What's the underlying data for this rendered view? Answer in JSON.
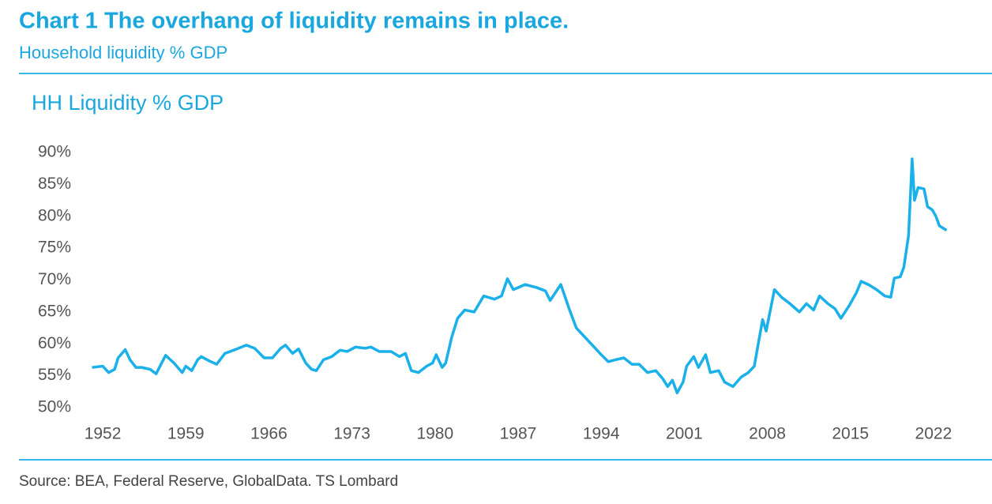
{
  "chart_data": {
    "type": "line",
    "title": "Chart 1 The overhang of liquidity remains in place.",
    "subtitle": "Household liquidity % GDP",
    "plot_title": "HH Liquidity % GDP",
    "source": "Source: BEA, Federal Reserve, GlobalData. TS Lombard",
    "color": "#1ab0ea",
    "x": [
      1951.1,
      1952,
      1952.5,
      1953,
      1953.3,
      1953.9,
      1954.3,
      1954.8,
      1955.3,
      1956,
      1956.5,
      1957.3,
      1958,
      1958.7,
      1959,
      1959.5,
      1960,
      1960.3,
      1961,
      1961.6,
      1962.3,
      1963.3,
      1964.1,
      1964.8,
      1965.6,
      1966.3,
      1967,
      1967.4,
      1968,
      1968.5,
      1969.1,
      1969.6,
      1970,
      1970.6,
      1971.3,
      1972,
      1972.6,
      1973.3,
      1974.1,
      1974.6,
      1975.3,
      1976.3,
      1977,
      1977.5,
      1978,
      1978.6,
      1979.3,
      1979.8,
      1980.1,
      1980.6,
      1980.9,
      1981.4,
      1981.9,
      1982.5,
      1983.3,
      1984.1,
      1985,
      1985.6,
      1986.1,
      1986.6,
      1987.6,
      1988.6,
      1989.3,
      1989.7,
      1990.6,
      1991.3,
      1991.9,
      1992.9,
      1993.9,
      1994.6,
      1995.2,
      1995.9,
      1996.6,
      1997.2,
      1997.9,
      1998.6,
      1999.2,
      1999.6,
      2000,
      2000.4,
      2000.9,
      2001.2,
      2001.8,
      2002.2,
      2002.8,
      2003.2,
      2003.9,
      2004.4,
      2005.1,
      2005.8,
      2006.4,
      2006.9,
      2007.6,
      2007.9,
      2008.6,
      2009.2,
      2009.9,
      2010.7,
      2011.3,
      2011.9,
      2012.4,
      2013.1,
      2013.7,
      2014.2,
      2014.9,
      2015.5,
      2015.9,
      2016.5,
      2017.2,
      2017.9,
      2018.4,
      2018.7,
      2019.2,
      2019.5,
      2019.9,
      2020.2,
      2020.4,
      2020.7,
      2021.2,
      2021.5,
      2021.9,
      2022.2,
      2022.5,
      2023.1
    ],
    "values": [
      56.3,
      56.5,
      55.5,
      56,
      57.8,
      59.1,
      57.5,
      56.3,
      56.3,
      56,
      55.3,
      58.2,
      57,
      55.5,
      56.5,
      55.8,
      57.5,
      58,
      57.3,
      56.8,
      58.5,
      59.2,
      59.8,
      59.3,
      57.8,
      57.8,
      59.3,
      59.8,
      58.5,
      59.2,
      57,
      56,
      55.8,
      57.5,
      58,
      59,
      58.8,
      59.5,
      59.3,
      59.5,
      58.8,
      58.8,
      58,
      58.5,
      55.8,
      55.5,
      56.5,
      57,
      58.3,
      56.3,
      57,
      61,
      64,
      65.3,
      65,
      67.5,
      67,
      67.5,
      70.2,
      68.5,
      69.3,
      68.8,
      68.3,
      66.8,
      69.3,
      65.5,
      62.5,
      60.5,
      58.5,
      57.2,
      57.5,
      57.8,
      56.8,
      56.8,
      55.5,
      55.8,
      54.5,
      53.3,
      54.3,
      52.3,
      54,
      56.5,
      58,
      56.3,
      58.3,
      55.5,
      55.8,
      54,
      53.3,
      54.8,
      55.5,
      56.5,
      63.8,
      62,
      68.5,
      67.3,
      66.3,
      65,
      66.3,
      65.3,
      67.5,
      66.3,
      65.5,
      64,
      66,
      68,
      69.8,
      69.3,
      68.5,
      67.5,
      67.3,
      70.3,
      70.5,
      72,
      77,
      89,
      82.5,
      84.5,
      84.3,
      81.5,
      81,
      80,
      78.5,
      77.8
    ],
    "xlim": [
      1950,
      2025
    ],
    "xticks": [
      1952,
      1959,
      1966,
      1973,
      1980,
      1987,
      1994,
      2001,
      2008,
      2015,
      2022
    ],
    "ylim": [
      50,
      90
    ],
    "yticks": [
      {
        "value": 50,
        "label": "50%"
      },
      {
        "value": 55,
        "label": "55%"
      },
      {
        "value": 60,
        "label": "60%"
      },
      {
        "value": 65,
        "label": "65%"
      },
      {
        "value": 70,
        "label": "70%"
      },
      {
        "value": 75,
        "label": "75%"
      },
      {
        "value": 80,
        "label": "80%"
      },
      {
        "value": 85,
        "label": "85%"
      },
      {
        "value": 90,
        "label": "90%"
      }
    ]
  }
}
